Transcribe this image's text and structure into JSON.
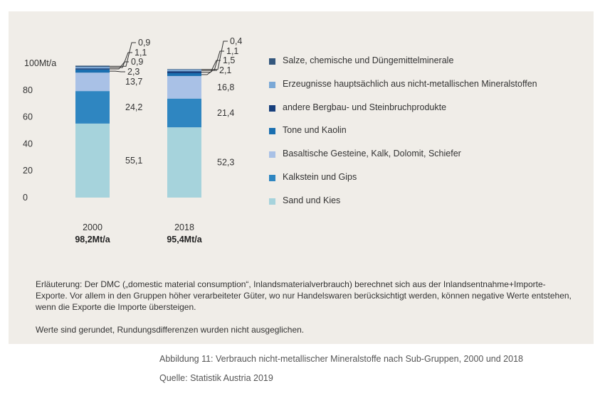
{
  "chart_data": {
    "type": "bar",
    "stacked": true,
    "y_unit_label": "Mt/a",
    "yticks": [
      0,
      20,
      40,
      60,
      80,
      100
    ],
    "ylim": [
      0,
      100
    ],
    "categories": [
      {
        "label": "2000",
        "total_label": "98,2Mt/a"
      },
      {
        "label": "2018",
        "total_label": "95,4Mt/a"
      }
    ],
    "series": [
      {
        "name": "Sand und Kies",
        "color": "#a6d3dc",
        "values": [
          55.1,
          52.3
        ],
        "labels": [
          "55,1",
          "52,3"
        ]
      },
      {
        "name": "Kalkstein und Gips",
        "color": "#2f86c1",
        "values": [
          24.2,
          21.4
        ],
        "labels": [
          "24,2",
          "21,4"
        ]
      },
      {
        "name": "Basaltische Gesteine, Kalk, Dolomit, Schiefer",
        "color": "#a9c1e6",
        "values": [
          13.7,
          16.8
        ],
        "labels": [
          "13,7",
          "16,8"
        ]
      },
      {
        "name": "Tone und Kaolin",
        "color": "#1a6fb0",
        "values": [
          2.3,
          2.1
        ],
        "labels": [
          "2,3",
          "2,1"
        ]
      },
      {
        "name": "andere Bergbau- und Steinbruchprodukte",
        "color": "#173f7c",
        "values": [
          0.9,
          1.5
        ],
        "labels": [
          "0,9",
          "1,5"
        ]
      },
      {
        "name": "Erzeugnisse hauptsächlich aus nicht-metallischen Mineralstoffen",
        "color": "#7aa8d6",
        "values": [
          1.1,
          1.1
        ],
        "labels": [
          "1,1",
          "1,1"
        ]
      },
      {
        "name": "Salze, chemische und Düngemittelminerale",
        "color": "#34577d",
        "values": [
          0.9,
          0.4
        ],
        "labels": [
          "0,9",
          "0,4"
        ]
      }
    ],
    "legend_position": "right"
  },
  "note": {
    "paragraph1": "Erläuterung: Der DMC („domestic material consumption“, Inlandsmaterialverbrauch) berechnet sich aus der Inlandsentnahme+Importe-Exporte. Vor allem in den Gruppen höher verarbeiteter Güter, wo nur Handelswaren berücksichtigt werden, können negative Werte entstehen, wenn die Exporte die Importe übersteigen.",
    "paragraph2": "Werte sind gerundet, Rundungsdifferenzen wurden nicht ausgeglichen."
  },
  "caption": "Abbildung 11: Verbrauch nicht-metallischer Mineralstoffe nach Sub-Gruppen, 2000 und 2018",
  "source": "Quelle: Statistik Austria 2019"
}
